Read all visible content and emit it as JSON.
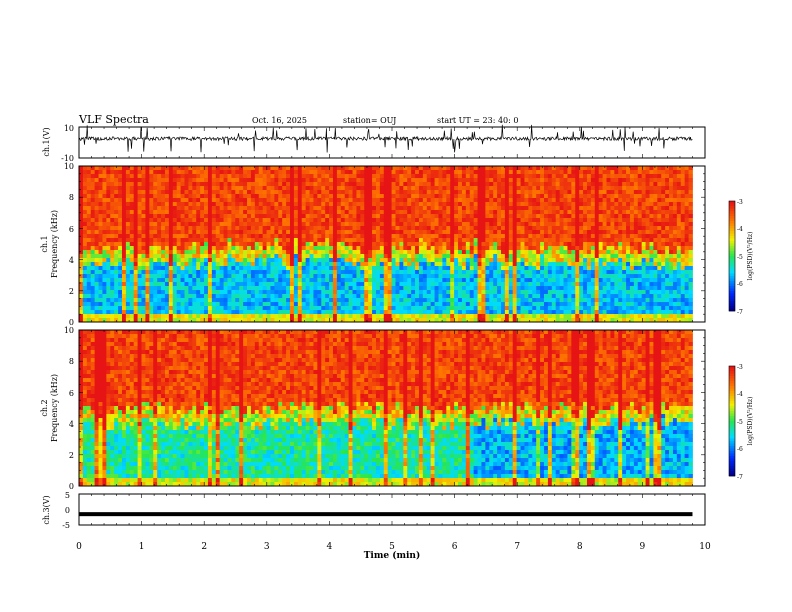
{
  "chart_data": {
    "type": "heatmap",
    "header": {
      "title": "VLF Spectra",
      "date": "Oct. 16, 2025",
      "station": "station= OUJ",
      "start": "start  UT =   23: 40: 0"
    },
    "time_axis": {
      "label": "Time  (min)",
      "range": [
        0,
        10
      ],
      "ticks": [
        "0",
        "1",
        "2",
        "3",
        "4",
        "5",
        "6",
        "7",
        "8",
        "9",
        "10"
      ],
      "data_end": 9.8
    },
    "panels": [
      {
        "kind": "waveform",
        "ylabel": "ch.1(V)",
        "yrange": [
          -10,
          10
        ],
        "ticks": [
          "10",
          "-10"
        ],
        "baseline": 2.5
      },
      {
        "kind": "spectrogram",
        "ylabel_top": "ch.1",
        "ylabel": "Frequency  (kHz)",
        "yrange": [
          0,
          10
        ],
        "ticks": [
          "0",
          "2",
          "4",
          "6",
          "8",
          "10"
        ],
        "boundary_khz": 4.8,
        "step_minute": null
      },
      {
        "kind": "spectrogram",
        "ylabel_top": "ch.2",
        "ylabel": "Frequency  (kHz)",
        "yrange": [
          0,
          10
        ],
        "ticks": [
          "0",
          "2",
          "4",
          "6",
          "8",
          "10"
        ],
        "boundary_khz": 5.0,
        "step_minute": 6.3
      },
      {
        "kind": "waveform",
        "ylabel": "ch.3(V)",
        "yrange": [
          -5,
          5
        ],
        "ticks": [
          "5",
          "0",
          "-5"
        ],
        "baseline": -1.5
      }
    ],
    "colorbar": {
      "label": "log(PSD)(V²/Hz)",
      "range": [
        -7,
        -3
      ],
      "ticks": [
        "-3",
        "-4",
        "-5",
        "-6",
        "-7"
      ]
    }
  }
}
